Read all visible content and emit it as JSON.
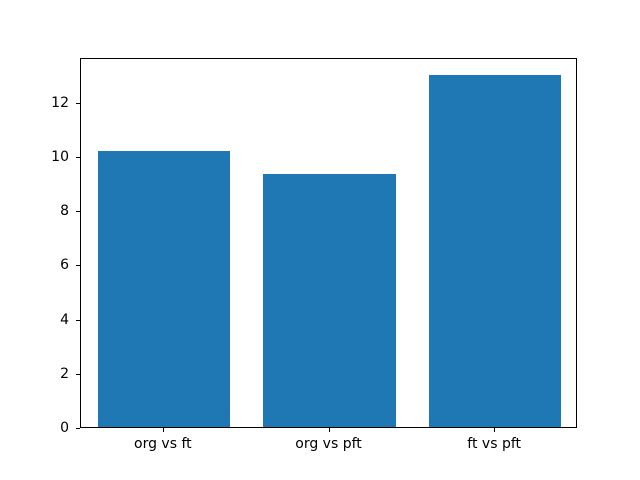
{
  "chart_data": {
    "type": "bar",
    "title": "",
    "xlabel": "",
    "ylabel": "",
    "categories": [
      "org vs ft",
      "org vs pft",
      "ft vs pft"
    ],
    "values": [
      10.2,
      9.35,
      13.0
    ],
    "yticks": [
      0,
      2,
      4,
      6,
      8,
      10,
      12
    ],
    "ylim": [
      0,
      13.65
    ],
    "bar_color": "#1f77b4",
    "bar_width_fraction": 0.8,
    "grid": false,
    "legend": null,
    "background_color": "#ffffff",
    "axis_color": "#000000"
  }
}
